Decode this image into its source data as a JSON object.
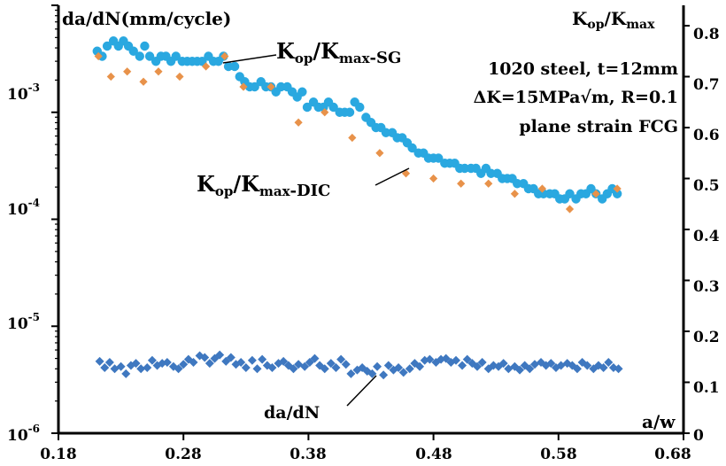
{
  "chart_data": {
    "type": "scatter",
    "left_axis": {
      "title": "da/dN(mm/cycle)",
      "scale": "log",
      "range": [
        1e-06,
        0.01
      ],
      "ticks": [
        {
          "value": 0.001,
          "base": "10",
          "exp": "-3"
        },
        {
          "value": 0.0001,
          "base": "10",
          "exp": "-4"
        },
        {
          "value": 1e-05,
          "base": "10",
          "exp": "-5"
        },
        {
          "value": 1e-06,
          "base": "10",
          "exp": "-6"
        }
      ]
    },
    "right_axis": {
      "title_main": "K",
      "title_sub": "op",
      "title_rest": "/K",
      "title_sub2": "max",
      "range": [
        0,
        0.84
      ],
      "ticks": [
        "0.8",
        "0.7",
        "0.6",
        "0.5",
        "0.4",
        "0.3",
        "0.2",
        "0.1",
        "0"
      ]
    },
    "x_axis": {
      "label": "a/w",
      "range": [
        0.18,
        0.68
      ],
      "ticks": [
        "0.18",
        "0.28",
        "0.38",
        "0.48",
        "0.58",
        "0.68"
      ]
    },
    "annotation_text": {
      "line1": "1020 steel,   t=12mm",
      "line2": "ΔK=15MPa√m, R=0.1",
      "line3": "plane strain FCG"
    },
    "series": [
      {
        "name_main": "K",
        "name_sub": "op",
        "name_mid": "/K",
        "name_sub2": "max",
        "name_suffix": "-SG",
        "axis": "right",
        "color": "#2aa8e0",
        "marker": "circle",
        "x": [
          0.211,
          0.215,
          0.219,
          0.224,
          0.228,
          0.232,
          0.236,
          0.24,
          0.245,
          0.249,
          0.253,
          0.258,
          0.262,
          0.266,
          0.27,
          0.274,
          0.279,
          0.283,
          0.287,
          0.291,
          0.295,
          0.3,
          0.304,
          0.308,
          0.312,
          0.316,
          0.321,
          0.325,
          0.329,
          0.333,
          0.337,
          0.342,
          0.346,
          0.35,
          0.354,
          0.358,
          0.363,
          0.367,
          0.371,
          0.375,
          0.379,
          0.384,
          0.388,
          0.392,
          0.396,
          0.4,
          0.405,
          0.409,
          0.413,
          0.417,
          0.421,
          0.426,
          0.43,
          0.434,
          0.438,
          0.442,
          0.447,
          0.451,
          0.455,
          0.459,
          0.463,
          0.468,
          0.472,
          0.476,
          0.48,
          0.484,
          0.489,
          0.493,
          0.497,
          0.501,
          0.505,
          0.51,
          0.514,
          0.518,
          0.522,
          0.526,
          0.531,
          0.535,
          0.539,
          0.543,
          0.547,
          0.552,
          0.556,
          0.56,
          0.564,
          0.568,
          0.573,
          0.577,
          0.581,
          0.585,
          0.589,
          0.594,
          0.598,
          0.602,
          0.606,
          0.61,
          0.615,
          0.619,
          0.623,
          0.627
        ],
        "y": [
          0.75,
          0.74,
          0.76,
          0.77,
          0.76,
          0.77,
          0.76,
          0.75,
          0.74,
          0.76,
          0.74,
          0.73,
          0.74,
          0.74,
          0.73,
          0.74,
          0.73,
          0.73,
          0.73,
          0.73,
          0.73,
          0.74,
          0.73,
          0.73,
          0.74,
          0.72,
          0.72,
          0.7,
          0.69,
          0.68,
          0.68,
          0.69,
          0.68,
          0.68,
          0.67,
          0.68,
          0.68,
          0.67,
          0.66,
          0.67,
          0.64,
          0.65,
          0.64,
          0.64,
          0.65,
          0.64,
          0.63,
          0.63,
          0.63,
          0.65,
          0.64,
          0.62,
          0.61,
          0.6,
          0.6,
          0.59,
          0.59,
          0.58,
          0.58,
          0.57,
          0.56,
          0.55,
          0.55,
          0.54,
          0.54,
          0.54,
          0.53,
          0.53,
          0.53,
          0.52,
          0.52,
          0.52,
          0.52,
          0.51,
          0.52,
          0.51,
          0.51,
          0.5,
          0.5,
          0.5,
          0.49,
          0.49,
          0.48,
          0.48,
          0.47,
          0.47,
          0.47,
          0.47,
          0.46,
          0.46,
          0.47,
          0.46,
          0.47,
          0.47,
          0.48,
          0.47,
          0.46,
          0.47,
          0.48,
          0.47
        ]
      },
      {
        "name_main": "K",
        "name_sub": "op",
        "name_mid": "/K",
        "name_sub2": "max",
        "name_suffix": "-DIC",
        "axis": "right",
        "color": "#e8924a",
        "marker": "diamond",
        "x": [
          0.212,
          0.222,
          0.235,
          0.248,
          0.26,
          0.277,
          0.298,
          0.313,
          0.328,
          0.35,
          0.372,
          0.393,
          0.415,
          0.437,
          0.458,
          0.48,
          0.502,
          0.524,
          0.545,
          0.567,
          0.589,
          0.61,
          0.627
        ],
        "y": [
          0.74,
          0.7,
          0.71,
          0.69,
          0.71,
          0.7,
          0.72,
          0.74,
          0.68,
          0.68,
          0.61,
          0.63,
          0.58,
          0.55,
          0.51,
          0.5,
          0.49,
          0.49,
          0.47,
          0.48,
          0.44,
          0.47,
          0.48
        ]
      },
      {
        "name": "da/dN",
        "axis": "left",
        "color": "#3f78c0",
        "marker": "diamond",
        "x": [
          0.213,
          0.217,
          0.221,
          0.225,
          0.23,
          0.234,
          0.238,
          0.242,
          0.246,
          0.251,
          0.255,
          0.259,
          0.263,
          0.267,
          0.272,
          0.276,
          0.28,
          0.284,
          0.288,
          0.293,
          0.297,
          0.301,
          0.305,
          0.309,
          0.314,
          0.318,
          0.322,
          0.326,
          0.33,
          0.335,
          0.339,
          0.343,
          0.347,
          0.351,
          0.356,
          0.36,
          0.364,
          0.368,
          0.372,
          0.377,
          0.381,
          0.385,
          0.389,
          0.393,
          0.398,
          0.402,
          0.406,
          0.41,
          0.414,
          0.419,
          0.423,
          0.427,
          0.431,
          0.435,
          0.44,
          0.444,
          0.448,
          0.452,
          0.456,
          0.461,
          0.465,
          0.469,
          0.473,
          0.477,
          0.482,
          0.486,
          0.49,
          0.494,
          0.498,
          0.503,
          0.507,
          0.511,
          0.515,
          0.519,
          0.524,
          0.528,
          0.532,
          0.536,
          0.54,
          0.545,
          0.549,
          0.553,
          0.557,
          0.561,
          0.566,
          0.57,
          0.574,
          0.578,
          0.582,
          0.587,
          0.591,
          0.595,
          0.599,
          0.603,
          0.608,
          0.612,
          0.616,
          0.62,
          0.624,
          0.628
        ],
        "y": [
          4.7e-06,
          4.1e-06,
          4.6e-06,
          4e-06,
          4.2e-06,
          3.6e-06,
          4.3e-06,
          4.5e-06,
          4e-06,
          4.1e-06,
          4.8e-06,
          4.3e-06,
          4.5e-06,
          4.6e-06,
          4.2e-06,
          4e-06,
          4.4e-06,
          4.9e-06,
          4.6e-06,
          5.3e-06,
          5.1e-06,
          4.5e-06,
          5e-06,
          5.4e-06,
          4.7e-06,
          5.1e-06,
          4.4e-06,
          4.6e-06,
          4.1e-06,
          4.8e-06,
          4e-06,
          4.9e-06,
          4.3e-06,
          4.1e-06,
          4.5e-06,
          4.7e-06,
          4.3e-06,
          4e-06,
          4.4e-06,
          4.2e-06,
          4.6e-06,
          5e-06,
          4.3e-06,
          4e-06,
          4.5e-06,
          4.1e-06,
          4.9e-06,
          4.4e-06,
          3.6e-06,
          3.9e-06,
          4.1e-06,
          3.8e-06,
          3.6e-06,
          4.2e-06,
          3.5e-06,
          4.3e-06,
          3.9e-06,
          4.1e-06,
          3.7e-06,
          4e-06,
          4.5e-06,
          4.2e-06,
          4.8e-06,
          4.9e-06,
          4.6e-06,
          4.9e-06,
          5e-06,
          4.6e-06,
          4.8e-06,
          4.3e-06,
          4.9e-06,
          4.5e-06,
          4.2e-06,
          4.6e-06,
          4e-06,
          4.3e-06,
          4.2e-06,
          4.5e-06,
          4e-06,
          4.2e-06,
          3.9e-06,
          4.3e-06,
          4e-06,
          4.4e-06,
          4.6e-06,
          4.3e-06,
          4.5e-06,
          4.1e-06,
          4.3e-06,
          4.5e-06,
          4.3e-06,
          4e-06,
          4.6e-06,
          4.3e-06,
          4e-06,
          4.3e-06,
          4.1e-06,
          4.6e-06,
          4.1e-06,
          4e-06
        ]
      }
    ],
    "grid": false
  }
}
